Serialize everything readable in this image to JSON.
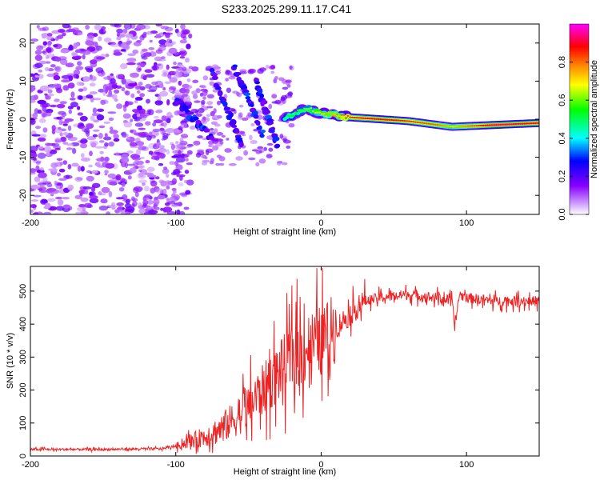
{
  "figure": {
    "title": "S233.2025.299.11.17.C41"
  },
  "chart_data": [
    {
      "type": "heatmap",
      "panel": "top",
      "title": "S233.2025.299.11.17.C41",
      "xlabel": "Height of straight line (km)",
      "ylabel": "Frequency (Hz)",
      "xlim": [
        -200,
        150
      ],
      "ylim": [
        -25,
        25
      ],
      "x_ticks": [
        -200,
        -100,
        0,
        100
      ],
      "y_ticks": [
        -20,
        -10,
        0,
        10,
        20
      ],
      "colorbar": {
        "label": "Normalized spectral amplitude",
        "range": [
          0,
          1
        ],
        "ticks": [
          0.0,
          0.2,
          0.4,
          0.6,
          0.8
        ],
        "colors": [
          "#ffffff",
          "#cc99ff",
          "#8800ff",
          "#0000ff",
          "#00ffff",
          "#00ff00",
          "#ffff00",
          "#ff8800",
          "#ff0000",
          "#ff00ff"
        ]
      },
      "ridge": {
        "description": "dominant spectral line",
        "points": [
          {
            "height_km": -120,
            "freq_hz": 8,
            "amp": 0.3
          },
          {
            "height_km": -95,
            "freq_hz": 5,
            "amp": 0.35
          },
          {
            "height_km": -80,
            "freq_hz": 0,
            "amp": 0.4
          },
          {
            "height_km": -70,
            "freq_hz": -4,
            "amp": 0.35
          },
          {
            "height_km": -60,
            "freq_hz": 3,
            "amp": 0.35
          },
          {
            "height_km": -50,
            "freq_hz": -2,
            "amp": 0.4
          },
          {
            "height_km": -35,
            "freq_hz": -1,
            "amp": 0.45
          },
          {
            "height_km": -20,
            "freq_hz": 1,
            "amp": 0.55
          },
          {
            "height_km": -10,
            "freq_hz": 3,
            "amp": 0.6
          },
          {
            "height_km": 0,
            "freq_hz": 1.5,
            "amp": 0.7
          },
          {
            "height_km": 20,
            "freq_hz": 0.5,
            "amp": 0.85
          },
          {
            "height_km": 40,
            "freq_hz": 0,
            "amp": 0.9
          },
          {
            "height_km": 60,
            "freq_hz": -0.5,
            "amp": 0.85
          },
          {
            "height_km": 80,
            "freq_hz": -1.5,
            "amp": 0.8
          },
          {
            "height_km": 90,
            "freq_hz": -2,
            "amp": 0.7
          },
          {
            "height_km": 120,
            "freq_hz": -1.5,
            "amp": 0.95
          },
          {
            "height_km": 150,
            "freq_hz": -1,
            "amp": 0.9
          }
        ]
      }
    },
    {
      "type": "line",
      "panel": "bottom",
      "xlabel": "Height of straight line (km)",
      "ylabel": "SNR (10 * v/v)",
      "xlim": [
        -200,
        150
      ],
      "ylim": [
        0,
        575
      ],
      "x_ticks": [
        -200,
        -100,
        0,
        100
      ],
      "y_ticks": [
        0,
        100,
        200,
        300,
        400,
        500
      ],
      "series": [
        {
          "name": "SNR",
          "color": "#ee2222",
          "x": [
            -200,
            -150,
            -110,
            -100,
            -90,
            -80,
            -70,
            -60,
            -50,
            -40,
            -30,
            -20,
            -10,
            0,
            10,
            20,
            30,
            40,
            60,
            80,
            90,
            92,
            95,
            100,
            120,
            150
          ],
          "values": [
            20,
            20,
            22,
            30,
            45,
            60,
            80,
            110,
            150,
            200,
            250,
            300,
            330,
            350,
            390,
            430,
            470,
            480,
            490,
            480,
            470,
            390,
            490,
            480,
            470,
            470
          ]
        }
      ]
    }
  ]
}
